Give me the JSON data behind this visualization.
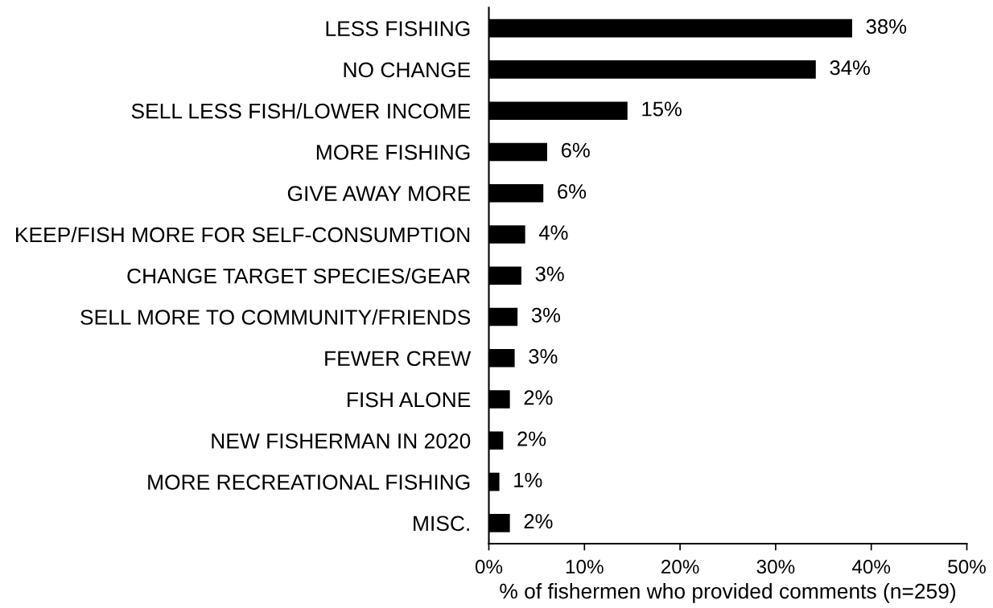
{
  "chart_data": {
    "type": "bar",
    "orientation": "horizontal",
    "categories": [
      "LESS FISHING",
      "NO CHANGE",
      "SELL LESS FISH/LOWER INCOME",
      "MORE FISHING",
      "GIVE AWAY MORE",
      "KEEP/FISH MORE FOR SELF-CONSUMPTION",
      "CHANGE TARGET SPECIES/GEAR",
      "SELL MORE TO COMMUNITY/FRIENDS",
      "FEWER CREW",
      "FISH ALONE",
      "NEW FISHERMAN IN 2020",
      "MORE RECREATIONAL FISHING",
      "MISC."
    ],
    "values": [
      38.0,
      34.2,
      14.5,
      6.1,
      5.7,
      3.8,
      3.4,
      3.0,
      2.7,
      2.2,
      1.5,
      1.1,
      2.2
    ],
    "value_labels": [
      "38%",
      "34%",
      "15%",
      "6%",
      "6%",
      "4%",
      "3%",
      "3%",
      "3%",
      "2%",
      "2%",
      "1%",
      "2%"
    ],
    "color": "#000000",
    "xlim": [
      0,
      50
    ],
    "xticks": [
      {
        "value": 0,
        "label": "0%"
      },
      {
        "value": 10,
        "label": "10%"
      },
      {
        "value": 20,
        "label": "20%"
      },
      {
        "value": 30,
        "label": "30%"
      },
      {
        "value": 40,
        "label": "40%"
      },
      {
        "value": 50,
        "label": "50%"
      }
    ],
    "xlabel": "% of fishermen who provided comments (n=259)"
  }
}
